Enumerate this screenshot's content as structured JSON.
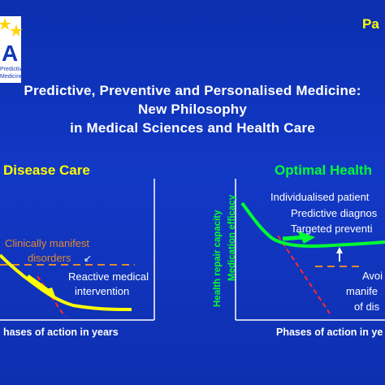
{
  "logo": {
    "text_line1": "Predictive",
    "text_line2": "Medicine"
  },
  "corner_label": "Pa",
  "title": {
    "line1": "Predictive, Preventive and Personalised Medicine:",
    "line2": "New Philosophy",
    "line3": "in Medical Sciences and Health Care"
  },
  "left_panel": {
    "heading": "Disease Care",
    "heading_color": "#ffff00",
    "disorder_label_line1": "Clinically manifest",
    "disorder_label_line2": "disorders",
    "intervention_line1": "Reactive medical",
    "intervention_line2": "intervention",
    "x_axis_title": "hases of action in years",
    "curve_color": "#ffff00",
    "dashed_color": "#e08a2e"
  },
  "right_panel": {
    "heading": "Optimal Health",
    "heading_color": "#00ff33",
    "y_axis_title_1": "Health repair capacity",
    "y_axis_title_2": "Medication efficacy",
    "bullet1": "Individualised patient",
    "bullet2": "Predictive diagnos",
    "bullet3": "Targeted preventi",
    "avoid_line1": "Avoi",
    "avoid_line2": "manife",
    "avoid_line3": "of dis",
    "x_axis_title": "Phases of action in ye",
    "curve_color": "#00ff33",
    "dashed_color": "#e08a2e"
  }
}
